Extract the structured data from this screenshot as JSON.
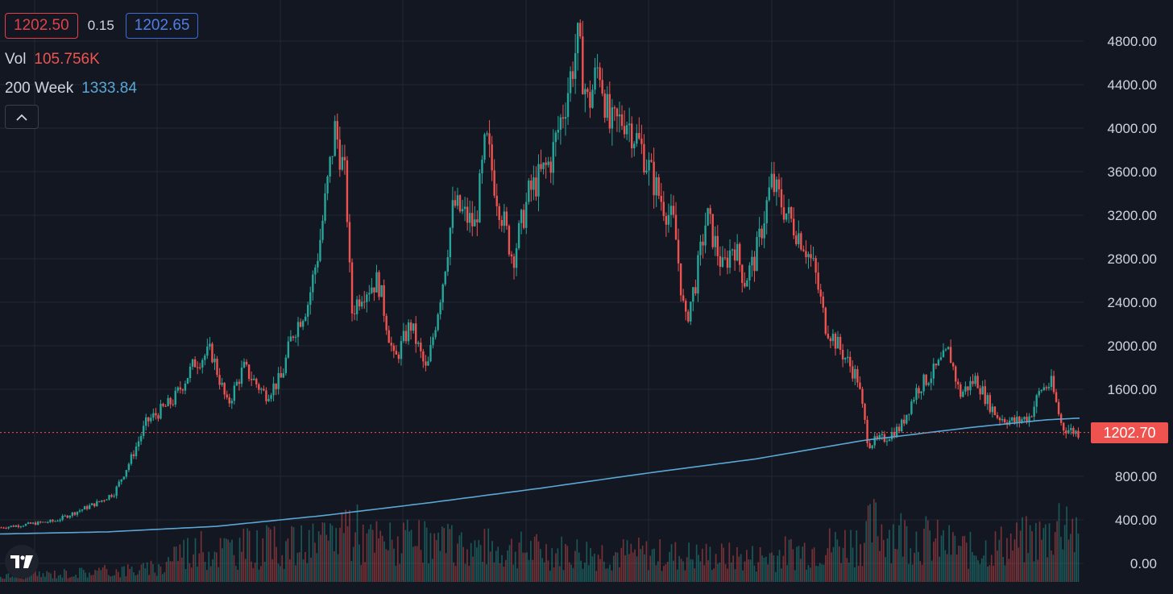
{
  "header": {
    "bid": "1202.50",
    "spread": "0.15",
    "ask": "1202.65",
    "vol_label": "Vol",
    "vol_value": "105.756K",
    "ma_label": "200 Week",
    "ma_value": "1333.84"
  },
  "colors": {
    "background": "#131722",
    "up": "#26a69a",
    "down": "#ef5350",
    "ma_line": "#5aa7d6",
    "grid": "#232733",
    "price_line": "#ef5350"
  },
  "icons": {
    "collapse": "chevron-up-icon",
    "logo": "tradingview-logo-icon"
  },
  "chart_data": {
    "type": "candlestick",
    "current_price": "1202.70",
    "current_price_value": 1202.7,
    "y_ticks": [
      "4800.00",
      "4400.00",
      "4000.00",
      "3600.00",
      "3200.00",
      "2800.00",
      "2400.00",
      "2000.00",
      "1600.00",
      "800.00",
      "400.00",
      "0.00"
    ],
    "ylim": [
      0,
      4800
    ],
    "price_path": [
      [
        0,
        330
      ],
      [
        0.05,
        390
      ],
      [
        0.09,
        560
      ],
      [
        0.105,
        650
      ],
      [
        0.12,
        950
      ],
      [
        0.135,
        1300
      ],
      [
        0.16,
        1500
      ],
      [
        0.18,
        1850
      ],
      [
        0.195,
        1950
      ],
      [
        0.21,
        1450
      ],
      [
        0.225,
        1800
      ],
      [
        0.245,
        1550
      ],
      [
        0.26,
        1700
      ],
      [
        0.27,
        2100
      ],
      [
        0.285,
        2400
      ],
      [
        0.295,
        2900
      ],
      [
        0.31,
        4000
      ],
      [
        0.32,
        3500
      ],
      [
        0.325,
        2300
      ],
      [
        0.335,
        2500
      ],
      [
        0.35,
        2600
      ],
      [
        0.36,
        2100
      ],
      [
        0.365,
        1850
      ],
      [
        0.38,
        2200
      ],
      [
        0.395,
        1750
      ],
      [
        0.41,
        2600
      ],
      [
        0.42,
        3300
      ],
      [
        0.44,
        3100
      ],
      [
        0.45,
        3900
      ],
      [
        0.46,
        3400
      ],
      [
        0.475,
        2800
      ],
      [
        0.49,
        3400
      ],
      [
        0.51,
        3700
      ],
      [
        0.525,
        4300
      ],
      [
        0.535,
        4800
      ],
      [
        0.545,
        4200
      ],
      [
        0.555,
        4600
      ],
      [
        0.565,
        4000
      ],
      [
        0.58,
        4100
      ],
      [
        0.595,
        3800
      ],
      [
        0.61,
        3400
      ],
      [
        0.625,
        3100
      ],
      [
        0.635,
        2200
      ],
      [
        0.645,
        2600
      ],
      [
        0.655,
        3200
      ],
      [
        0.67,
        2700
      ],
      [
        0.68,
        2950
      ],
      [
        0.69,
        2600
      ],
      [
        0.7,
        2800
      ],
      [
        0.715,
        3500
      ],
      [
        0.73,
        3200
      ],
      [
        0.745,
        2950
      ],
      [
        0.755,
        2700
      ],
      [
        0.765,
        2200
      ],
      [
        0.78,
        1950
      ],
      [
        0.795,
        1700
      ],
      [
        0.805,
        1100
      ],
      [
        0.82,
        1150
      ],
      [
        0.835,
        1250
      ],
      [
        0.85,
        1600
      ],
      [
        0.865,
        1750
      ],
      [
        0.88,
        1950
      ],
      [
        0.89,
        1550
      ],
      [
        0.905,
        1700
      ],
      [
        0.915,
        1500
      ],
      [
        0.925,
        1350
      ],
      [
        0.94,
        1300
      ],
      [
        0.955,
        1350
      ],
      [
        0.965,
        1600
      ],
      [
        0.975,
        1650
      ],
      [
        0.985,
        1250
      ],
      [
        1.0,
        1200
      ]
    ],
    "ma200_path": [
      [
        0,
        270
      ],
      [
        0.1,
        290
      ],
      [
        0.2,
        340
      ],
      [
        0.3,
        440
      ],
      [
        0.4,
        560
      ],
      [
        0.5,
        690
      ],
      [
        0.6,
        830
      ],
      [
        0.7,
        960
      ],
      [
        0.8,
        1130
      ],
      [
        0.9,
        1250
      ],
      [
        0.97,
        1320
      ],
      [
        1.0,
        1335
      ]
    ],
    "volume_profile": [
      [
        0,
        0.08
      ],
      [
        0.15,
        0.2
      ],
      [
        0.16,
        0.45
      ],
      [
        0.3,
        0.55
      ],
      [
        0.32,
        0.9
      ],
      [
        0.34,
        0.6
      ],
      [
        0.5,
        0.45
      ],
      [
        0.6,
        0.4
      ],
      [
        0.7,
        0.35
      ],
      [
        0.8,
        0.6
      ],
      [
        0.81,
        0.8
      ],
      [
        0.9,
        0.45
      ],
      [
        0.97,
        0.65
      ],
      [
        0.99,
        1.0
      ],
      [
        1.0,
        0.5
      ]
    ]
  }
}
